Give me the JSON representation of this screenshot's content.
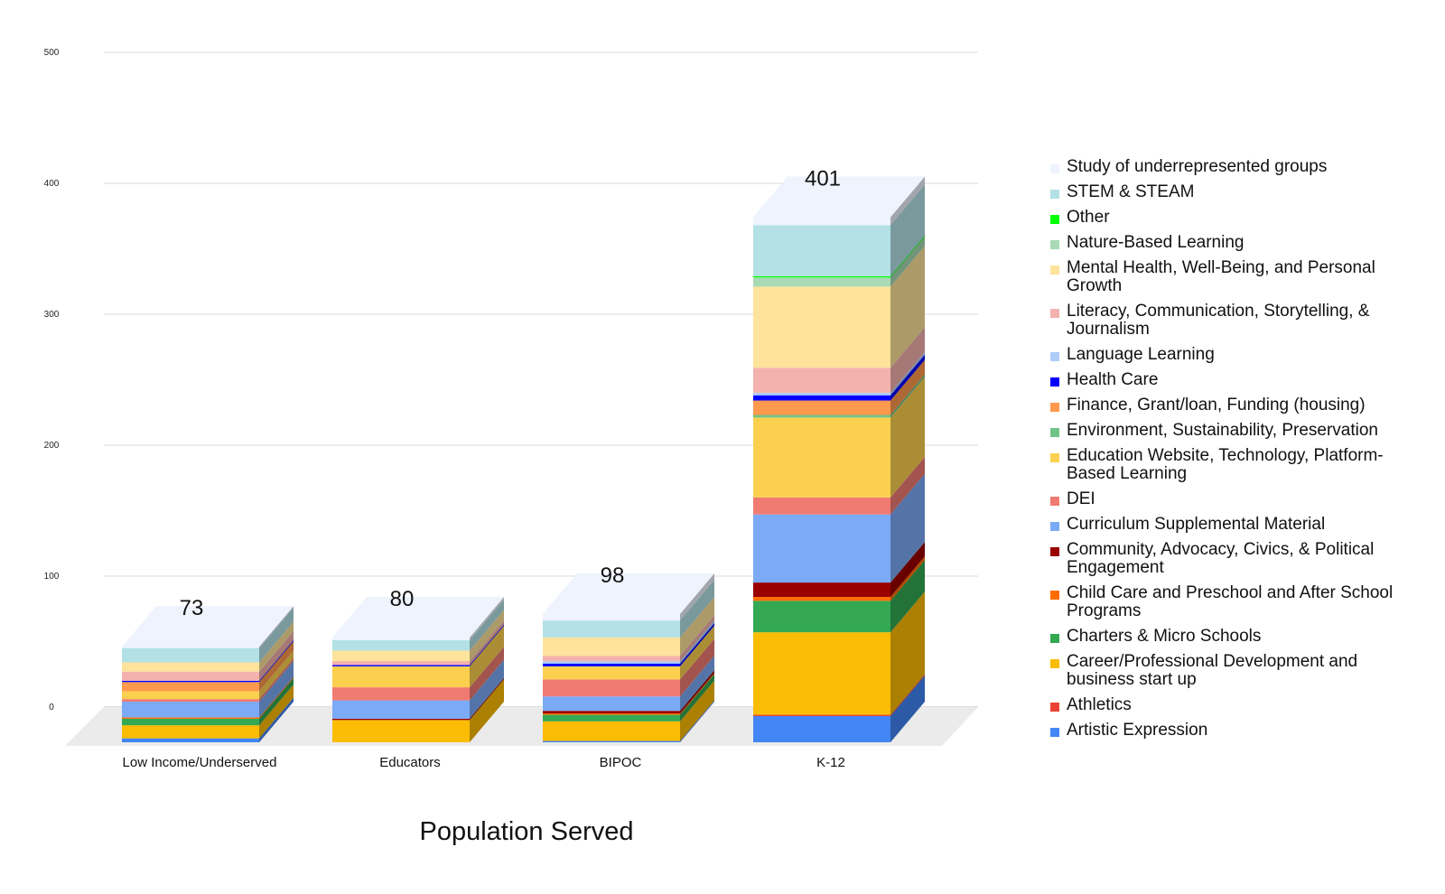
{
  "chart_data": {
    "type": "bar",
    "stacked": true,
    "three_d": true,
    "title": "",
    "xlabel": "Population Served",
    "ylabel": "",
    "ylim": [
      0,
      500
    ],
    "yticks": [
      0,
      100,
      200,
      300,
      400,
      500
    ],
    "ytick_labels": [
      "0",
      "100",
      "200",
      "300",
      "400",
      "500"
    ],
    "grid": true,
    "legend_position": "right",
    "categories": [
      "Low Income/Underserved",
      "Educators",
      "BIPOC",
      "K-12"
    ],
    "totals": [
      73,
      80,
      98,
      401
    ],
    "total_labels": [
      "73",
      "80",
      "98",
      "401"
    ],
    "series": [
      {
        "name": "Artistic  Expression",
        "color": "#4285f4",
        "values": [
          3,
          0,
          1,
          20
        ]
      },
      {
        "name": "Athletics",
        "color": "#ea4335",
        "values": [
          0,
          0,
          0,
          1
        ]
      },
      {
        "name": "Career/Professional Development and business start up",
        "color": "#fbbc04",
        "values": [
          10,
          17,
          15,
          63
        ]
      },
      {
        "name": "Charters & Micro Schools",
        "color": "#34a853",
        "values": [
          5,
          0,
          5,
          24
        ]
      },
      {
        "name": "Child Care and Preschool and After School Programs",
        "color": "#ff6d01",
        "values": [
          1,
          0,
          1,
          3
        ]
      },
      {
        "name": "Community, Advocacy, Civics, & Political Engagement",
        "color": "#990000",
        "values": [
          0,
          1,
          2,
          11
        ]
      },
      {
        "name": "Curriculum Supplemental Material",
        "color": "#7baaf7",
        "values": [
          12,
          14,
          11,
          52
        ]
      },
      {
        "name": "DEI",
        "color": "#f07b72",
        "values": [
          2,
          10,
          13,
          13
        ]
      },
      {
        "name": "Education Website, Technology, Platform-Based Learning",
        "color": "#fcd04f",
        "values": [
          6,
          16,
          10,
          61
        ]
      },
      {
        "name": "Environment, Sustainability, Preservation",
        "color": "#71c287",
        "values": [
          0,
          0,
          0,
          2
        ]
      },
      {
        "name": "Finance, Grant/loan, Funding (housing)",
        "color": "#ff994d",
        "values": [
          7,
          0,
          0,
          11
        ]
      },
      {
        "name": "Health Care",
        "color": "#0000ff",
        "values": [
          1,
          1,
          2,
          4
        ]
      },
      {
        "name": "Language Learning",
        "color": "#aecbfa",
        "values": [
          0,
          0,
          2,
          2
        ]
      },
      {
        "name": "Literacy, Communication, Storytelling, & Journalism",
        "color": "#f4b2ae",
        "values": [
          7,
          3,
          4,
          19
        ]
      },
      {
        "name": "Mental Health, Well-Being, and Personal Growth",
        "color": "#fde39b",
        "values": [
          7,
          8,
          14,
          62
        ]
      },
      {
        "name": "Nature-Based Learning",
        "color": "#a8dab5",
        "values": [
          0,
          0,
          0,
          7
        ]
      },
      {
        "name": "Other",
        "color": "#00ff00",
        "values": [
          0,
          0,
          0,
          1
        ]
      },
      {
        "name": "STEM & STEAM",
        "color": "#b3e1e5",
        "values": [
          11,
          8,
          13,
          39
        ]
      },
      {
        "name": "Study of underrepresented groups",
        "color": "#eef3fd",
        "values": [
          1,
          2,
          5,
          6
        ]
      }
    ]
  }
}
